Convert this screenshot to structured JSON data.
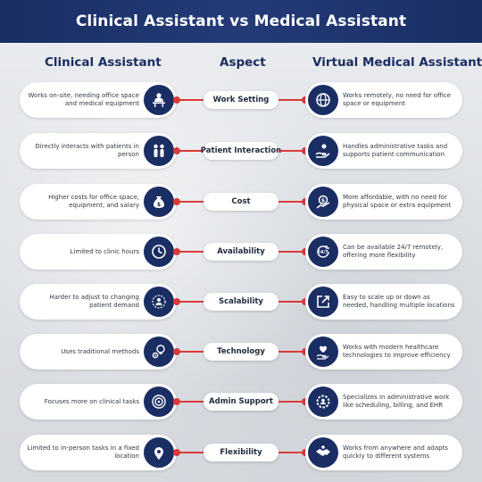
{
  "title": "Clinical Assistant vs Medical Assistant",
  "columns": {
    "left": "Clinical Assistant",
    "middle": "Aspect",
    "right": "Virtual Medical Assistant"
  },
  "rows": [
    {
      "aspect": "Work Setting",
      "left": "Works on-site, needing office space and medical equipment",
      "right": "Works remotely, no need for office space or equipment",
      "left_icon": "desk-worker-icon",
      "right_icon": "remote-globe-icon"
    },
    {
      "aspect": "Patient Interaction",
      "left": "Directly interacts with patients in person",
      "right": "Handles administrative tasks and supports patient communication",
      "left_icon": "people-icon",
      "right_icon": "hand-support-icon"
    },
    {
      "aspect": "Cost",
      "left": "Higher costs for office space, equipment, and salary",
      "right": "More affordable, with no need for physical space or extra equipment",
      "left_icon": "money-bag-icon",
      "right_icon": "savings-icon"
    },
    {
      "aspect": "Availability",
      "left": "Limited to clinic hours",
      "right": "Can be available 24/7 remotely, offering more flexibility",
      "left_icon": "clock-icon",
      "right_icon": "24-7-icon"
    },
    {
      "aspect": "Scalability",
      "left": "Harder to adjust to changing patient demand",
      "right": "Easy to scale up or down as needed, handling multiple locations",
      "left_icon": "team-scale-icon",
      "right_icon": "expand-arrow-icon"
    },
    {
      "aspect": "Technology",
      "left": "Uses traditional methods",
      "right": "Works with modern healthcare technologies to improve efficiency",
      "left_icon": "gears-lightbulb-icon",
      "right_icon": "heart-hand-icon"
    },
    {
      "aspect": "Admin Support",
      "left": "Focuses more on clinical tasks",
      "right": "Specializes in administrative work like scheduling, billing, and EHR",
      "left_icon": "target-icon",
      "right_icon": "settings-people-icon"
    },
    {
      "aspect": "Flexibility",
      "left": "Limited to in-person tasks in a fixed location",
      "right": "Works from anywhere and adapts quickly to different systems",
      "left_icon": "location-pin-icon",
      "right_icon": "handshake-icon"
    }
  ],
  "colors": {
    "navy": "#1a2e63",
    "accent": "#d93a3a"
  }
}
